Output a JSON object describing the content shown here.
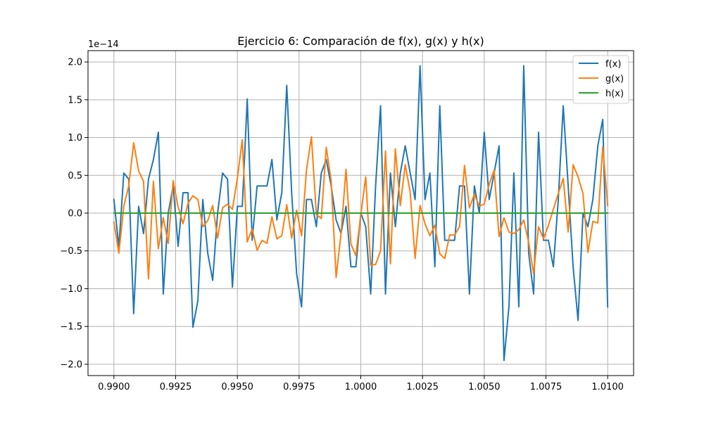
{
  "chart_data": {
    "type": "line",
    "title": "Ejercicio 6: Comparación de f(x), g(x) y h(x)",
    "xlabel": "",
    "ylabel": "",
    "y_offset_label": "1e−14",
    "y_scale": 1e-14,
    "xlim": [
      0.98895,
      1.01105
    ],
    "ylim": [
      -2.15,
      2.15
    ],
    "x_ticks": [
      0.99,
      0.9925,
      0.995,
      0.9975,
      1.0,
      1.0025,
      1.005,
      1.0075,
      1.01
    ],
    "x_tick_labels": [
      "0.9900",
      "0.9925",
      "0.9950",
      "0.9975",
      "1.0000",
      "1.0025",
      "1.0050",
      "1.0075",
      "1.0100"
    ],
    "y_ticks": [
      -2.0,
      -1.5,
      -1.0,
      -0.5,
      0.0,
      0.5,
      1.0,
      1.5,
      2.0
    ],
    "y_tick_labels": [
      "−2.0",
      "−1.5",
      "−1.0",
      "−0.5",
      "0.0",
      "0.5",
      "1.0",
      "1.5",
      "2.0"
    ],
    "grid": true,
    "legend_position": "top-right",
    "x": [
      0.99,
      0.9902,
      0.9904,
      0.9906,
      0.9908,
      0.991,
      0.9912,
      0.9914,
      0.9916,
      0.9918,
      0.992,
      0.9922,
      0.9924,
      0.9926,
      0.9928,
      0.993,
      0.9932,
      0.9934,
      0.9936,
      0.9938,
      0.994,
      0.9942,
      0.9944,
      0.9946,
      0.9948,
      0.995,
      0.9952,
      0.9954,
      0.9956,
      0.9958,
      0.996,
      0.9962,
      0.9964,
      0.9966,
      0.9968,
      0.997,
      0.9972,
      0.9974,
      0.9976,
      0.9978,
      0.998,
      0.9982,
      0.9984,
      0.9986,
      0.9988,
      0.999,
      0.9992,
      0.9994,
      0.9996,
      0.9998,
      1.0,
      1.0002,
      1.0004,
      1.0006,
      1.0008,
      1.001,
      1.0012,
      1.0014,
      1.0016,
      1.0018,
      1.002,
      1.0022,
      1.0024,
      1.0026,
      1.0028,
      1.003,
      1.0032,
      1.0034,
      1.0036,
      1.0038,
      1.004,
      1.0042,
      1.0044,
      1.0046,
      1.0048,
      1.005,
      1.0052,
      1.0054,
      1.0056,
      1.0058,
      1.006,
      1.0062,
      1.0064,
      1.0066,
      1.0068,
      1.007,
      1.0072,
      1.0074,
      1.0076,
      1.0078,
      1.008,
      1.0082,
      1.0084,
      1.0086,
      1.0088,
      1.009,
      1.0092,
      1.0094,
      1.0096,
      1.0098,
      1.01
    ],
    "series": [
      {
        "name": "f(x)",
        "color": "#1f77b4",
        "values": [
          0.18,
          -0.45,
          0.53,
          0.45,
          -1.33,
          0.09,
          -0.27,
          0.45,
          0.71,
          1.07,
          -1.07,
          0.0,
          0.36,
          -0.44,
          0.27,
          0.27,
          -1.51,
          -1.16,
          0.18,
          -0.53,
          -0.89,
          0.0,
          0.53,
          0.45,
          -0.98,
          0.09,
          0.09,
          1.51,
          -0.36,
          0.36,
          0.36,
          0.36,
          0.71,
          -0.09,
          0.27,
          1.69,
          0.27,
          -0.8,
          -1.24,
          0.18,
          0.18,
          -0.18,
          0.53,
          0.71,
          0.36,
          -0.09,
          -0.27,
          0.09,
          -0.71,
          -0.71,
          0.0,
          -0.18,
          -1.07,
          0.36,
          1.42,
          -1.07,
          0.53,
          -0.18,
          0.53,
          0.89,
          0.53,
          0.18,
          1.95,
          0.18,
          0.53,
          -0.71,
          1.42,
          -0.36,
          -0.36,
          -0.36,
          0.36,
          0.36,
          -1.07,
          0.36,
          0.0,
          1.07,
          0.18,
          0.53,
          0.89,
          -1.95,
          -1.24,
          0.53,
          -1.24,
          1.95,
          -0.53,
          -1.07,
          1.07,
          -0.36,
          -0.36,
          -0.71,
          0.18,
          1.42,
          0.36,
          -0.71,
          -1.42,
          0.0,
          -0.18,
          0.18,
          0.89,
          1.24,
          -1.24
        ]
      },
      {
        "name": "g(x)",
        "color": "#ff7f0e",
        "values": [
          -0.12,
          -0.53,
          0.09,
          0.36,
          0.93,
          0.56,
          0.42,
          -0.87,
          0.42,
          -0.47,
          -0.06,
          -0.4,
          0.43,
          0.08,
          -0.14,
          0.13,
          0.23,
          0.18,
          -0.18,
          -0.1,
          0.1,
          -0.33,
          0.07,
          0.12,
          0.05,
          0.46,
          0.97,
          -0.38,
          -0.21,
          -0.49,
          -0.36,
          -0.4,
          -0.05,
          -0.34,
          -0.3,
          0.11,
          -0.33,
          0.04,
          -0.3,
          0.57,
          1.01,
          -0.02,
          -0.07,
          0.87,
          0.43,
          -0.85,
          -0.27,
          0.58,
          -0.41,
          -0.56,
          -0.02,
          0.48,
          -0.69,
          -0.68,
          -0.5,
          0.82,
          -0.67,
          0.85,
          0.1,
          0.64,
          0.28,
          -0.6,
          0.1,
          -0.14,
          -0.3,
          -0.16,
          -0.54,
          -0.6,
          -0.29,
          -0.29,
          -0.18,
          0.63,
          0.07,
          0.25,
          0.09,
          0.12,
          0.38,
          0.57,
          -0.31,
          -0.06,
          -0.25,
          -0.27,
          -0.22,
          -0.09,
          -0.39,
          -0.8,
          -0.18,
          -0.34,
          -0.16,
          0.05,
          0.26,
          0.46,
          -0.25,
          0.64,
          0.48,
          0.26,
          -0.52,
          -0.11,
          -0.13,
          0.88,
          0.1
        ]
      },
      {
        "name": "h(x)",
        "color": "#2ca02c",
        "values": [
          0.0,
          0.0,
          0.0,
          0.0,
          0.0,
          0.0,
          0.0,
          0.0,
          0.0,
          0.0,
          0.0,
          0.0,
          0.0,
          0.0,
          0.0,
          0.0,
          0.0,
          0.0,
          0.0,
          0.0,
          0.0,
          0.0,
          0.0,
          0.0,
          0.0,
          0.0,
          0.0,
          0.0,
          0.0,
          0.0,
          0.0,
          0.0,
          0.0,
          0.0,
          0.0,
          0.0,
          0.0,
          0.0,
          0.0,
          0.0,
          0.0,
          0.0,
          0.0,
          0.0,
          0.0,
          0.0,
          0.0,
          0.0,
          0.0,
          0.0,
          0.0,
          0.0,
          0.0,
          0.0,
          0.0,
          0.0,
          0.0,
          0.0,
          0.0,
          0.0,
          0.0,
          0.0,
          0.0,
          0.0,
          0.0,
          0.0,
          0.0,
          0.0,
          0.0,
          0.0,
          0.0,
          0.0,
          0.0,
          0.0,
          0.0,
          0.0,
          0.0,
          0.0,
          0.0,
          0.0,
          0.0,
          0.0,
          0.0,
          0.0,
          0.0,
          0.0,
          0.0,
          0.0,
          0.0,
          0.0,
          0.0,
          0.0,
          0.0,
          0.0,
          0.0,
          0.0,
          0.0,
          0.0,
          0.0,
          0.0,
          0.0
        ]
      }
    ]
  }
}
